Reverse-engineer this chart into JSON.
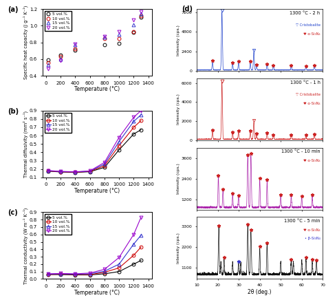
{
  "colors": {
    "5vol": "#000000",
    "10vol": "#cc0000",
    "15vol": "#3333cc",
    "20vol": "#9900cc"
  },
  "panel_a": {
    "title_label": "(a)",
    "ylabel": "Specific heat capacity (J g⁻¹ K⁻¹)",
    "xlabel": "Temperature (°C)",
    "ylim": [
      0.4,
      1.2
    ],
    "yticks": [
      0.4,
      0.6,
      0.8,
      1.0,
      1.2
    ],
    "xticks": [
      0,
      200,
      400,
      600,
      800,
      1000,
      1200,
      1400
    ],
    "series": {
      "5vol": {
        "x": [
          25,
          200,
          400,
          800,
          1000,
          1200,
          1300
        ],
        "y": [
          0.59,
          0.65,
          0.71,
          0.77,
          0.79,
          0.92,
          1.1
        ]
      },
      "10vol": {
        "x": [
          25,
          200,
          400,
          800,
          1000,
          1200,
          1300
        ],
        "y": [
          0.56,
          0.63,
          0.72,
          0.85,
          0.85,
          0.93,
          1.12
        ]
      },
      "15vol": {
        "x": [
          25,
          200,
          400,
          800,
          1000,
          1200,
          1300
        ],
        "y": [
          0.53,
          0.6,
          0.77,
          0.86,
          0.9,
          1.01,
          1.14
        ]
      },
      "20vol": {
        "x": [
          25,
          200,
          400,
          800,
          1000,
          1200,
          1300
        ],
        "y": [
          0.48,
          0.58,
          0.78,
          0.87,
          0.93,
          1.07,
          1.17
        ]
      }
    }
  },
  "panel_b": {
    "title_label": "(b)",
    "ylabel": "Thermal diffusivity (mm² s⁻¹)",
    "xlabel": "Temperature (°C)",
    "ylim": [
      0.1,
      0.9
    ],
    "yticks": [
      0.1,
      0.2,
      0.3,
      0.4,
      0.5,
      0.6,
      0.7,
      0.8,
      0.9
    ],
    "xticks": [
      0,
      200,
      400,
      600,
      800,
      1000,
      1200,
      1400
    ],
    "series": {
      "5vol": {
        "x": [
          25,
          200,
          400,
          600,
          800,
          1000,
          1200,
          1300
        ],
        "y": [
          0.175,
          0.165,
          0.16,
          0.168,
          0.22,
          0.43,
          0.62,
          0.67
        ]
      },
      "10vol": {
        "x": [
          25,
          200,
          400,
          600,
          800,
          1000,
          1200,
          1300
        ],
        "y": [
          0.178,
          0.168,
          0.163,
          0.172,
          0.24,
          0.48,
          0.7,
          0.78
        ]
      },
      "15vol": {
        "x": [
          25,
          200,
          400,
          600,
          800,
          1000,
          1200,
          1300
        ],
        "y": [
          0.18,
          0.17,
          0.165,
          0.175,
          0.26,
          0.53,
          0.77,
          0.85
        ]
      },
      "20vol": {
        "x": [
          25,
          200,
          400,
          600,
          800,
          1000,
          1200,
          1300
        ],
        "y": [
          0.183,
          0.172,
          0.167,
          0.178,
          0.28,
          0.58,
          0.82,
          0.9
        ]
      }
    }
  },
  "panel_c": {
    "title_label": "(c)",
    "ylabel": "Thermal conductivity (W m⁻¹ K⁻¹)",
    "xlabel": "Temperature (°C)",
    "ylim": [
      0.0,
      0.9
    ],
    "yticks": [
      0.0,
      0.1,
      0.2,
      0.3,
      0.4,
      0.5,
      0.6,
      0.7,
      0.8,
      0.9
    ],
    "xticks": [
      0,
      200,
      400,
      600,
      800,
      1000,
      1200,
      1400
    ],
    "series": {
      "5vol": {
        "x": [
          25,
          200,
          400,
          600,
          800,
          1000,
          1200,
          1300
        ],
        "y": [
          0.06,
          0.06,
          0.055,
          0.055,
          0.07,
          0.1,
          0.2,
          0.25
        ]
      },
      "10vol": {
        "x": [
          25,
          200,
          400,
          600,
          800,
          1000,
          1200,
          1300
        ],
        "y": [
          0.06,
          0.065,
          0.06,
          0.06,
          0.09,
          0.15,
          0.32,
          0.43
        ]
      },
      "15vol": {
        "x": [
          25,
          200,
          400,
          600,
          800,
          1000,
          1200,
          1300
        ],
        "y": [
          0.065,
          0.07,
          0.065,
          0.07,
          0.105,
          0.2,
          0.47,
          0.59
        ]
      },
      "20vol": {
        "x": [
          25,
          200,
          400,
          600,
          800,
          1000,
          1200,
          1300
        ],
        "y": [
          0.07,
          0.075,
          0.07,
          0.08,
          0.13,
          0.29,
          0.6,
          0.83
        ]
      }
    }
  },
  "xrd_color_d1": "#2244cc",
  "xrd_color_d2": "#cc2222",
  "xrd_color_d3": "#aa22aa",
  "xrd_color_d4": "#111111",
  "alpha_marker_color": "#cc2222",
  "beta_marker_color": "#3333cc",
  "label_d1": "1300 °C - 2 h",
  "label_d2": "1300 °C - 1 h",
  "label_d3": "1300 °C - 10 min",
  "label_d4": "1300 °C - 5 min"
}
